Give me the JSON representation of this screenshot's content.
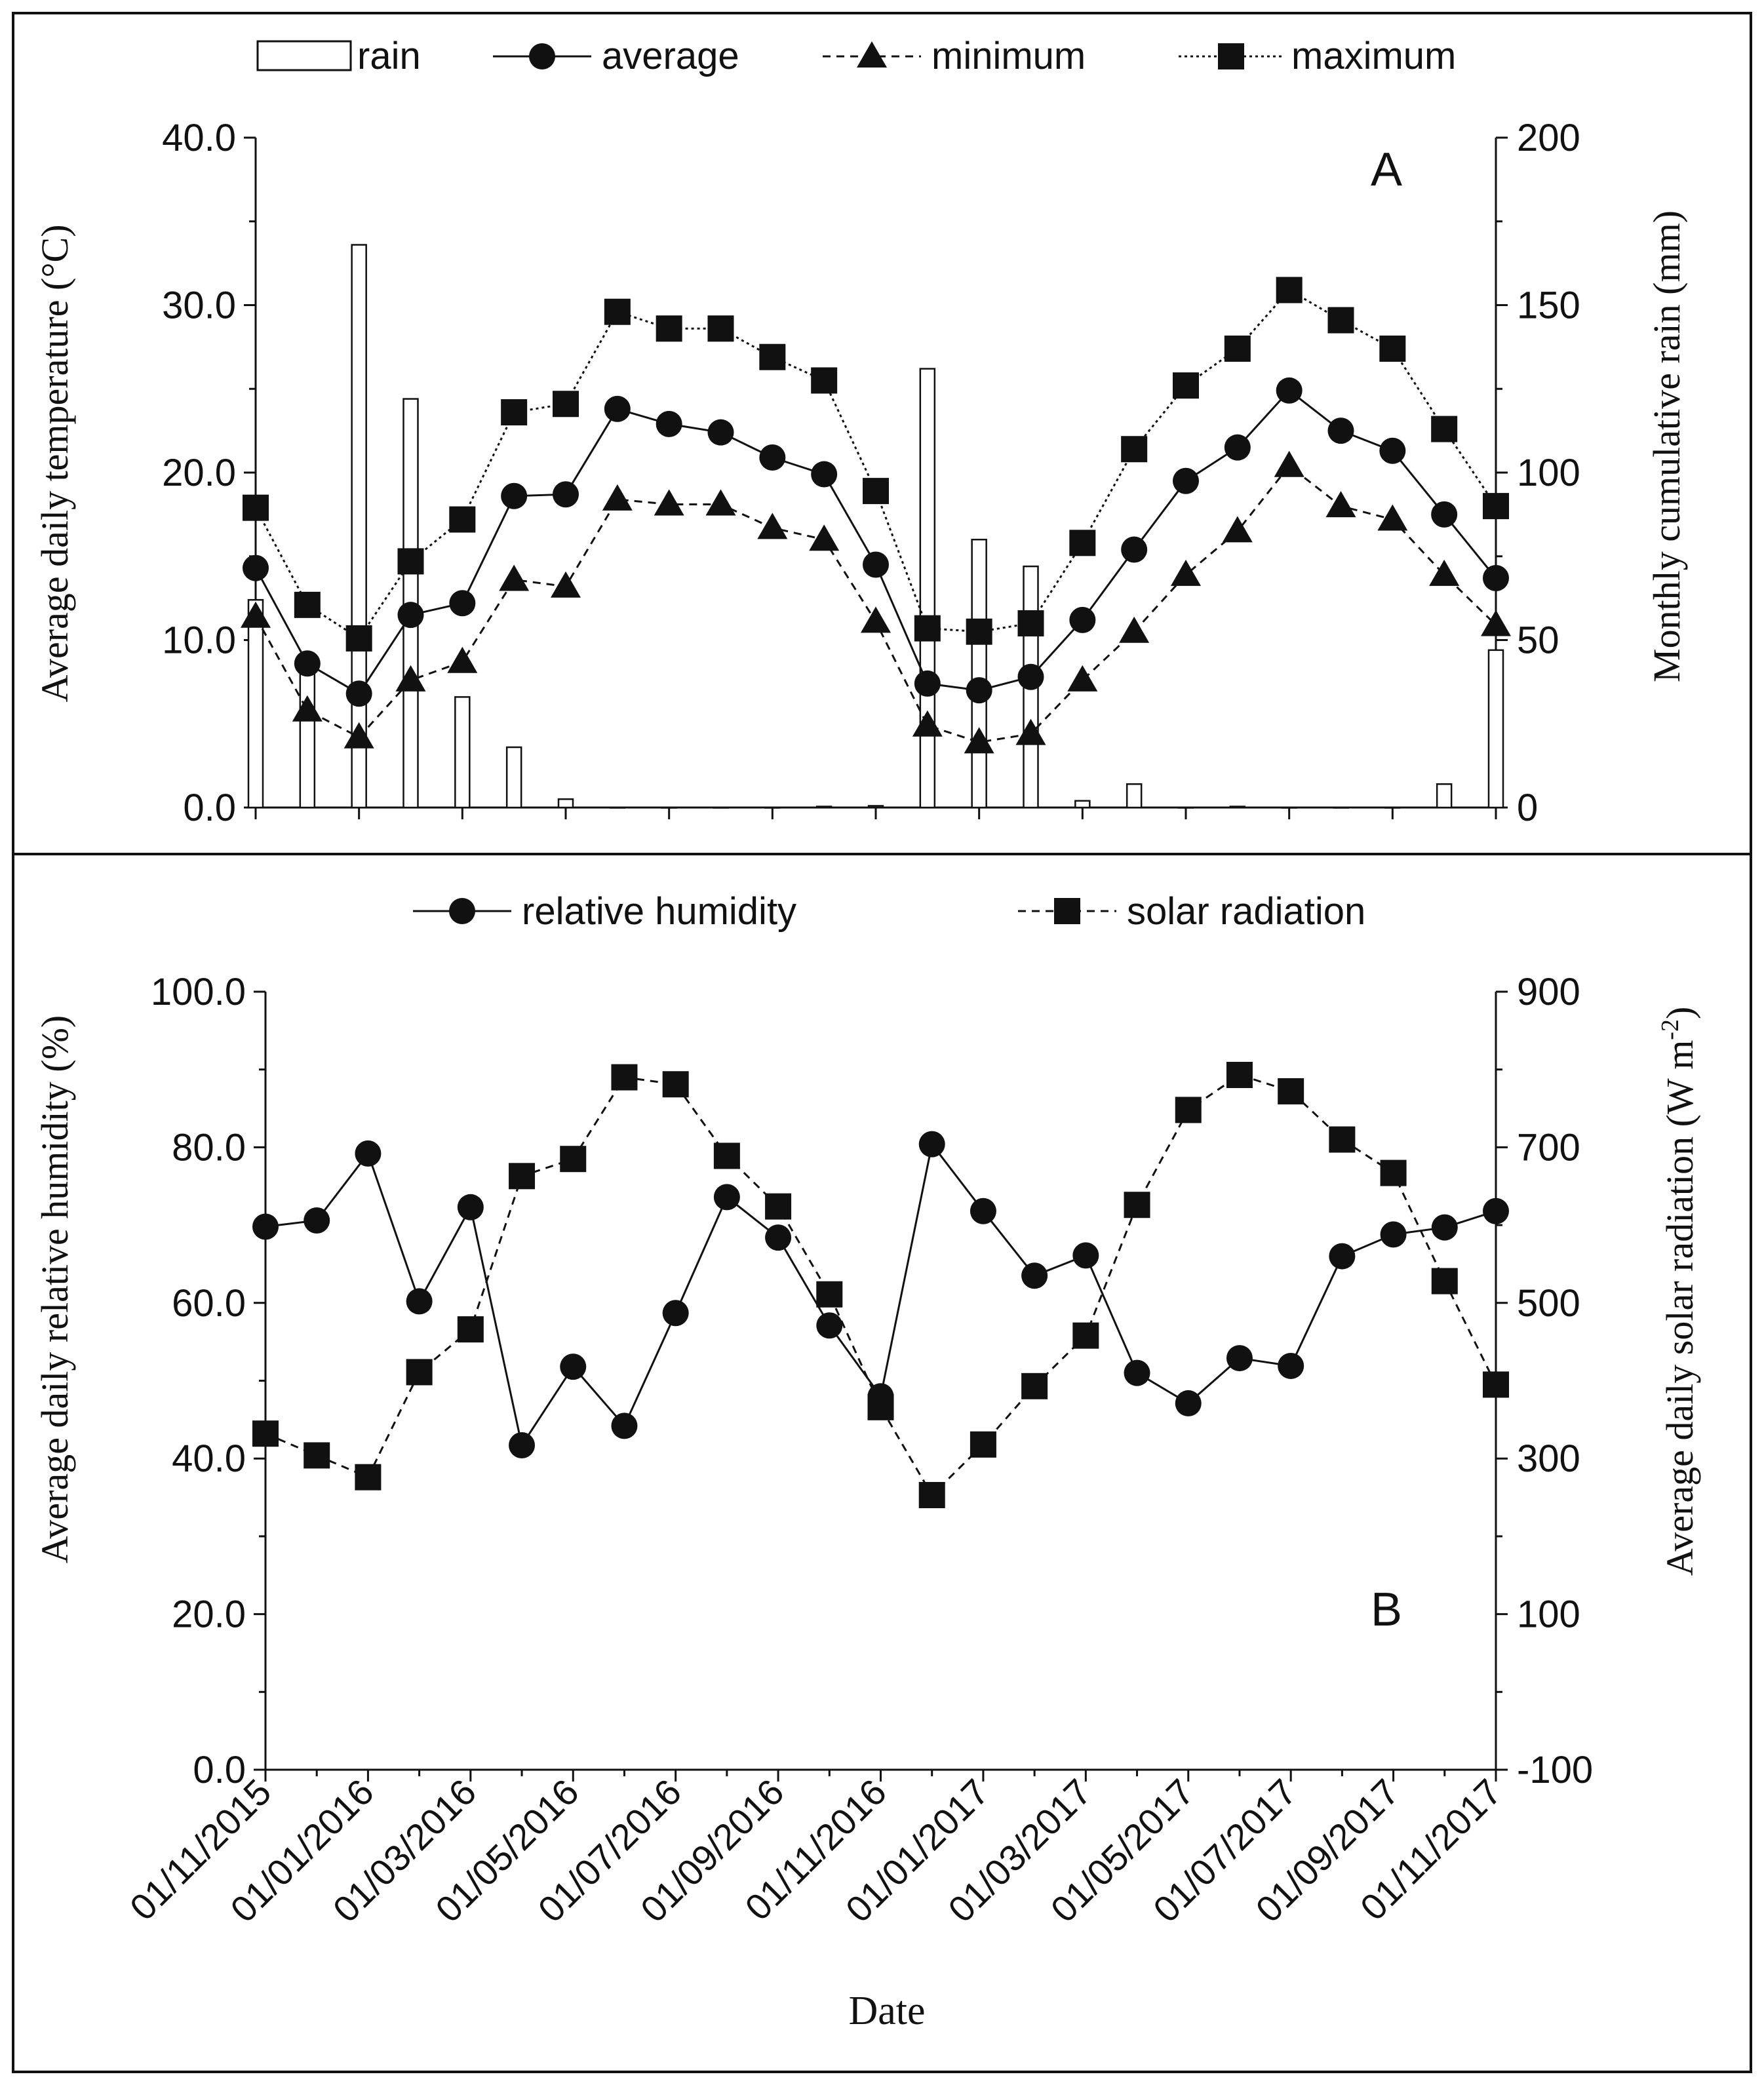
{
  "chart_data": [
    {
      "panel": "A",
      "type": "line+bar",
      "panel_letter": "A",
      "ylabel_left": "Average daily temperature (°C)",
      "ylabel_right": "Monthly cumulative rain (mm)",
      "ylim_left": [
        0,
        40
      ],
      "ylim_right": [
        0,
        200
      ],
      "yticks_left": [
        "0.0",
        "10.0",
        "20.0",
        "30.0",
        "40.0"
      ],
      "yticks_right": [
        "0",
        "50",
        "100",
        "150",
        "200"
      ],
      "x_months": [
        "11/2015",
        "12/2015",
        "01/2016",
        "02/2016",
        "03/2016",
        "04/2016",
        "05/2016",
        "06/2016",
        "07/2016",
        "08/2016",
        "09/2016",
        "10/2016",
        "11/2016",
        "12/2016",
        "01/2017",
        "02/2017",
        "03/2017",
        "04/2017",
        "05/2017",
        "06/2017",
        "07/2017",
        "08/2017",
        "09/2017",
        "10/2017",
        "11/2017"
      ],
      "legend": [
        {
          "name": "rain",
          "marker": "bar"
        },
        {
          "name": "average",
          "marker": "circle",
          "line": "solid"
        },
        {
          "name": "minimum",
          "marker": "triangle",
          "line": "dashed"
        },
        {
          "name": "maximum",
          "marker": "square",
          "line": "dotted"
        }
      ],
      "rain": [
        62,
        42,
        168,
        122,
        33,
        18,
        2.5,
        0,
        0,
        0,
        0,
        0.3,
        0.5,
        131,
        80,
        72,
        2,
        7,
        0,
        0.3,
        0,
        0,
        0,
        7,
        47
      ],
      "average": [
        14.3,
        8.6,
        6.8,
        11.5,
        12.2,
        18.6,
        18.7,
        23.8,
        22.9,
        22.4,
        20.9,
        19.9,
        14.5,
        7.4,
        7.0,
        7.8,
        11.2,
        15.4,
        19.5,
        21.5,
        24.9,
        22.5,
        21.3,
        17.5,
        13.7
      ],
      "minimum": [
        11.4,
        5.8,
        4.2,
        7.6,
        8.7,
        13.6,
        13.2,
        18.4,
        18.1,
        18.1,
        16.7,
        16.0,
        11.1,
        4.9,
        3.9,
        4.4,
        7.6,
        10.5,
        13.9,
        16.5,
        20.4,
        18.0,
        17.2,
        13.9,
        10.9
      ],
      "maximum": [
        17.9,
        12.1,
        10.1,
        14.7,
        17.2,
        23.6,
        24.1,
        29.6,
        28.6,
        28.6,
        26.9,
        25.5,
        18.9,
        10.7,
        10.5,
        11.0,
        15.8,
        21.4,
        25.2,
        27.4,
        30.9,
        29.1,
        27.4,
        22.6,
        18.0
      ]
    },
    {
      "panel": "B",
      "type": "line",
      "panel_letter": "B",
      "ylabel_left": "Average daily relative humidity (%)",
      "ylabel_right_main": "Average daily solar radiation (W m",
      "ylabel_right_sup": "-2",
      "ylabel_right_close": ")",
      "ylim_left": [
        0,
        100
      ],
      "ylim_right": [
        -100,
        900
      ],
      "yticks_left": [
        "0.0",
        "20.0",
        "40.0",
        "60.0",
        "80.0",
        "100.0"
      ],
      "yticks_right": [
        "-100",
        "100",
        "300",
        "500",
        "700",
        "900"
      ],
      "xlabel": "Date",
      "xtick_labels": [
        "01/11/2015",
        "01/01/2016",
        "01/03/2016",
        "01/05/2016",
        "01/07/2016",
        "01/09/2016",
        "01/11/2016",
        "01/01/2017",
        "01/03/2017",
        "01/05/2017",
        "01/07/2017",
        "01/09/2017",
        "01/11/2017"
      ],
      "legend": [
        {
          "name": "relative humidity",
          "marker": "circle",
          "line": "solid"
        },
        {
          "name": "solar radiation",
          "marker": "square",
          "line": "dashed"
        }
      ],
      "relative_humidity": [
        69.8,
        70.6,
        79.2,
        60.2,
        72.3,
        41.7,
        51.8,
        44.2,
        58.7,
        73.6,
        68.4,
        57.1,
        48.0,
        80.4,
        71.8,
        63.5,
        66.1,
        51.0,
        47.1,
        52.9,
        51.9,
        66.0,
        68.8,
        69.7,
        71.8
      ],
      "solar_radiation": [
        332,
        304,
        276,
        411,
        466,
        663,
        685,
        790,
        781,
        689,
        624,
        511,
        366,
        253,
        318,
        393,
        458,
        626,
        748,
        793,
        772,
        710,
        667,
        528,
        395
      ]
    }
  ]
}
